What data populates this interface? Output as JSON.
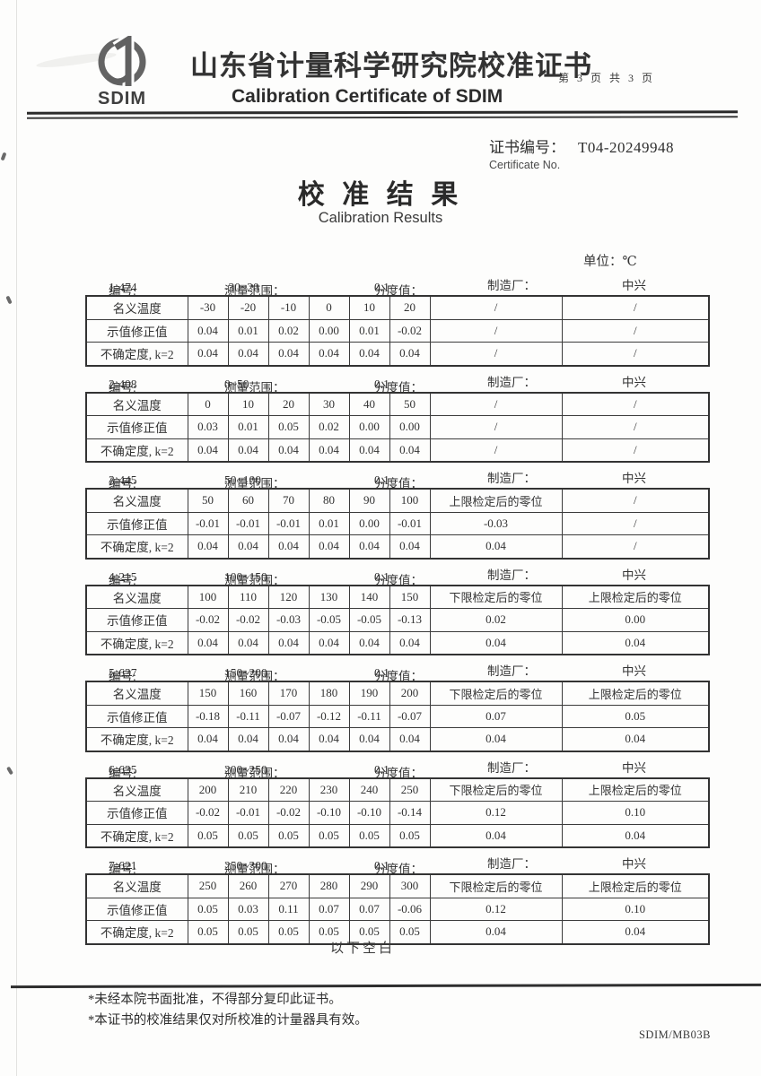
{
  "header": {
    "logo_text": "SDIM",
    "title_cn": "山东省计量科学研究院校准证书",
    "page_info": "第 3 页 共 3 页",
    "title_en": "Calibration Certificate of SDIM"
  },
  "certificate": {
    "label_cn": "证书编号：",
    "number": "T04-20249948",
    "label_en": "Certificate No."
  },
  "results": {
    "title_cn": "校 准 结 果",
    "title_en": "Calibration Results"
  },
  "unit_text": "单位：℃",
  "labels": {
    "id": "编号:",
    "range": "测量范围：",
    "division": "分度值：",
    "maker": "制造厂："
  },
  "sections": [
    {
      "id": "1-474",
      "range": "-30~20",
      "division": "0.1",
      "maker": "中兴",
      "rows": [
        [
          "名义温度",
          "-30",
          "-20",
          "-10",
          "0",
          "10",
          "20",
          "/",
          "/"
        ],
        [
          "示值修正值",
          "0.04",
          "0.01",
          "0.02",
          "0.00",
          "0.01",
          "-0.02",
          "/",
          "/"
        ],
        [
          "不确定度, k=2",
          "0.04",
          "0.04",
          "0.04",
          "0.04",
          "0.04",
          "0.04",
          "/",
          "/"
        ]
      ]
    },
    {
      "id": "2-408",
      "range": "0~50",
      "division": "0.1",
      "maker": "中兴",
      "rows": [
        [
          "名义温度",
          "0",
          "10",
          "20",
          "30",
          "40",
          "50",
          "/",
          "/"
        ],
        [
          "示值修正值",
          "0.03",
          "0.01",
          "0.05",
          "0.02",
          "0.00",
          "0.00",
          "/",
          "/"
        ],
        [
          "不确定度, k=2",
          "0.04",
          "0.04",
          "0.04",
          "0.04",
          "0.04",
          "0.04",
          "/",
          "/"
        ]
      ]
    },
    {
      "id": "3-445",
      "range": "50~100",
      "division": "0.1",
      "maker": "中兴",
      "rows": [
        [
          "名义温度",
          "50",
          "60",
          "70",
          "80",
          "90",
          "100",
          "上限检定后的零位",
          "/"
        ],
        [
          "示值修正值",
          "-0.01",
          "-0.01",
          "-0.01",
          "0.01",
          "0.00",
          "-0.01",
          "-0.03",
          "/"
        ],
        [
          "不确定度, k=2",
          "0.04",
          "0.04",
          "0.04",
          "0.04",
          "0.04",
          "0.04",
          "0.04",
          "/"
        ]
      ]
    },
    {
      "id": "4-215",
      "range": "100~150",
      "division": "0.1",
      "maker": "中兴",
      "rows": [
        [
          "名义温度",
          "100",
          "110",
          "120",
          "130",
          "140",
          "150",
          "下限检定后的零位",
          "上限检定后的零位"
        ],
        [
          "示值修正值",
          "-0.02",
          "-0.02",
          "-0.03",
          "-0.05",
          "-0.05",
          "-0.13",
          "0.02",
          "0.00"
        ],
        [
          "不确定度, k=2",
          "0.04",
          "0.04",
          "0.04",
          "0.04",
          "0.04",
          "0.04",
          "0.04",
          "0.04"
        ]
      ]
    },
    {
      "id": "5-637",
      "range": "150~200",
      "division": "0.1",
      "maker": "中兴",
      "rows": [
        [
          "名义温度",
          "150",
          "160",
          "170",
          "180",
          "190",
          "200",
          "下限检定后的零位",
          "上限检定后的零位"
        ],
        [
          "示值修正值",
          "-0.18",
          "-0.11",
          "-0.07",
          "-0.12",
          "-0.11",
          "-0.07",
          "0.07",
          "0.05"
        ],
        [
          "不确定度, k=2",
          "0.04",
          "0.04",
          "0.04",
          "0.04",
          "0.04",
          "0.04",
          "0.04",
          "0.04"
        ]
      ]
    },
    {
      "id": "6-635",
      "range": "200~250",
      "division": "0.1",
      "maker": "中兴",
      "rows": [
        [
          "名义温度",
          "200",
          "210",
          "220",
          "230",
          "240",
          "250",
          "下限检定后的零位",
          "上限检定后的零位"
        ],
        [
          "示值修正值",
          "-0.02",
          "-0.01",
          "-0.02",
          "-0.10",
          "-0.10",
          "-0.14",
          "0.12",
          "0.10"
        ],
        [
          "不确定度, k=2",
          "0.05",
          "0.05",
          "0.05",
          "0.05",
          "0.05",
          "0.05",
          "0.04",
          "0.04"
        ]
      ]
    },
    {
      "id": "7-621",
      "range": "250~300",
      "division": "0.1",
      "maker": "中兴",
      "rows": [
        [
          "名义温度",
          "250",
          "260",
          "270",
          "280",
          "290",
          "300",
          "下限检定后的零位",
          "上限检定后的零位"
        ],
        [
          "示值修正值",
          "0.05",
          "0.03",
          "0.11",
          "0.07",
          "0.07",
          "-0.06",
          "0.12",
          "0.10"
        ],
        [
          "不确定度, k=2",
          "0.05",
          "0.05",
          "0.05",
          "0.05",
          "0.05",
          "0.05",
          "0.04",
          "0.04"
        ]
      ]
    }
  ],
  "below_blank": "以下空白",
  "footnotes": [
    "*未经本院书面批准，不得部分复印此证书。",
    "*本证书的校准结果仅对所校准的计量器具有效。"
  ],
  "form_code": "SDIM/MB03B"
}
